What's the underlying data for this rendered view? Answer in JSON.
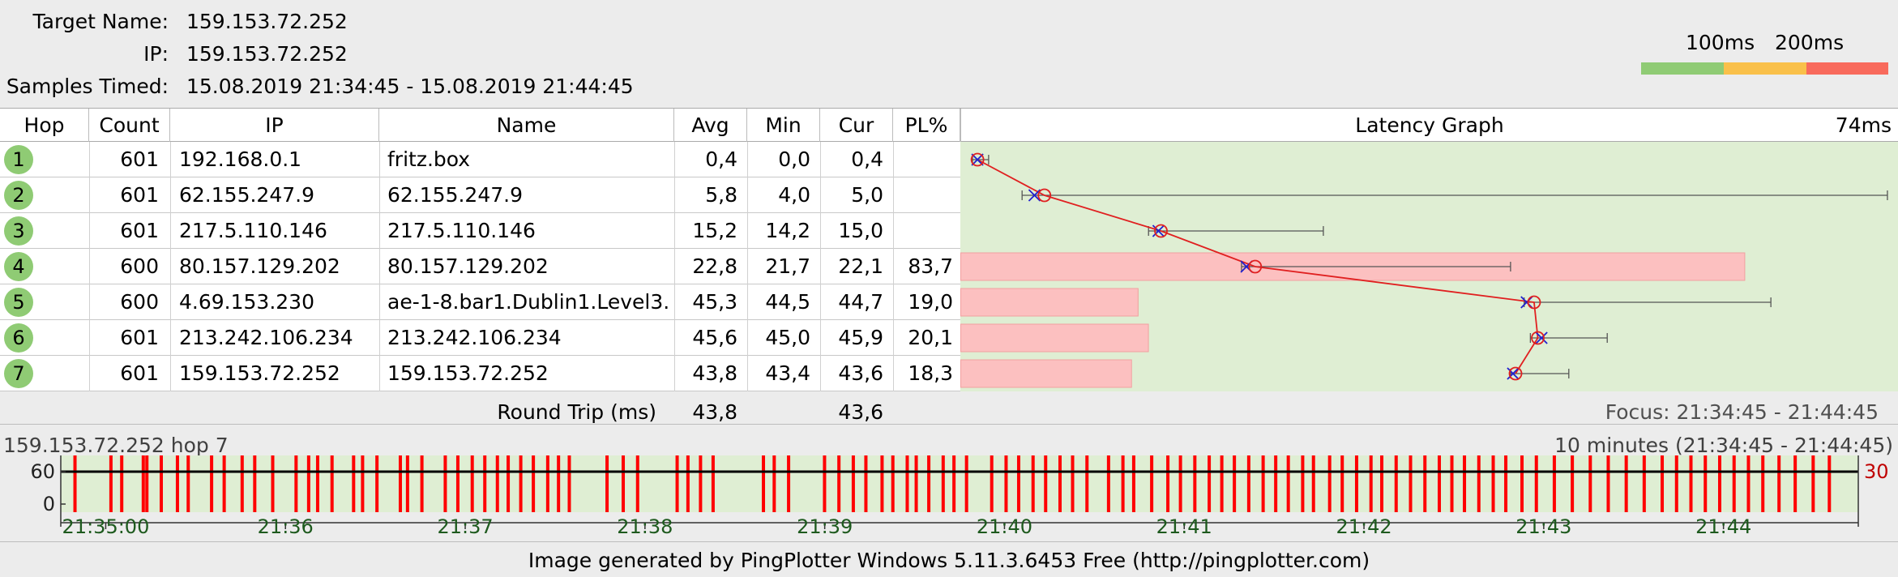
{
  "header": {
    "target_label": "Target Name:",
    "target_value": "159.153.72.252",
    "ip_label": "IP:",
    "ip_value": "159.153.72.252",
    "samples_label": "Samples Timed:",
    "samples_value": "15.08.2019 21:34:45 - 15.08.2019 21:44:45"
  },
  "legend": {
    "label_100": "100ms",
    "label_200": "200ms",
    "colors": {
      "good": "#8fcb74",
      "warn": "#f9c04a",
      "bad": "#f86a5c"
    }
  },
  "table": {
    "columns": [
      "Hop",
      "Count",
      "IP",
      "Name",
      "Avg",
      "Min",
      "Cur",
      "PL%",
      "Latency Graph"
    ],
    "graph_scale": "74ms",
    "rows": [
      {
        "hop": "1",
        "count": "601",
        "ip": "192.168.0.1",
        "name": "fritz.box",
        "avg": "0,4",
        "min": "0,0",
        "cur": "0,4",
        "pl": ""
      },
      {
        "hop": "2",
        "count": "601",
        "ip": "62.155.247.9",
        "name": "62.155.247.9",
        "avg": "5,8",
        "min": "4,0",
        "cur": "5,0",
        "pl": ""
      },
      {
        "hop": "3",
        "count": "601",
        "ip": "217.5.110.146",
        "name": "217.5.110.146",
        "avg": "15,2",
        "min": "14,2",
        "cur": "15,0",
        "pl": ""
      },
      {
        "hop": "4",
        "count": "600",
        "ip": "80.157.129.202",
        "name": "80.157.129.202",
        "avg": "22,8",
        "min": "21,7",
        "cur": "22,1",
        "pl": "83,7"
      },
      {
        "hop": "5",
        "count": "600",
        "ip": "4.69.153.230",
        "name": "ae-1-8.bar1.Dublin1.Level3.",
        "avg": "45,3",
        "min": "44,5",
        "cur": "44,7",
        "pl": "19,0"
      },
      {
        "hop": "6",
        "count": "601",
        "ip": "213.242.106.234",
        "name": "213.242.106.234",
        "avg": "45,6",
        "min": "45,0",
        "cur": "45,9",
        "pl": "20,1"
      },
      {
        "hop": "7",
        "count": "601",
        "ip": "159.153.72.252",
        "name": "159.153.72.252",
        "avg": "43,8",
        "min": "43,4",
        "cur": "43,6",
        "pl": "18,3"
      }
    ],
    "round_trip_label": "Round Trip (ms)",
    "round_trip_avg": "43,8",
    "round_trip_cur": "43,6",
    "focus_text": "Focus: 21:34:45 - 21:44:45"
  },
  "chart_data": {
    "type": "scatter",
    "title": "Latency Graph",
    "xlim": [
      0,
      74
    ],
    "x_unit": "ms",
    "hops": [
      1,
      2,
      3,
      4,
      5,
      6,
      7
    ],
    "avg": [
      0.4,
      5.8,
      15.2,
      22.8,
      45.3,
      45.6,
      43.8
    ],
    "min": [
      0.0,
      4.0,
      14.2,
      21.7,
      44.5,
      45.0,
      43.4
    ],
    "cur": [
      0.4,
      5.0,
      15.0,
      22.1,
      44.7,
      45.9,
      43.6
    ],
    "max": [
      1.3,
      73.8,
      28.3,
      43.4,
      64.4,
      51.2,
      48.1
    ],
    "packet_loss_pct": [
      0,
      0,
      0,
      83.7,
      19.0,
      20.1,
      18.3
    ],
    "colors": {
      "bg": "#dfeed3",
      "loss": "#fcc0c0",
      "avg_marker": "#e02020",
      "cur_marker": "#2020d0"
    }
  },
  "timeline": {
    "title": "159.153.72.252 hop 7",
    "range_text": "10 minutes (21:34:45 - 21:44:45)",
    "y_ticks": [
      "60",
      "0"
    ],
    "right_label": "30",
    "x_ticks": [
      "21:35:00",
      "21:36",
      "21:37",
      "21:38",
      "21:39",
      "21:40",
      "21:41",
      "21:42",
      "21:43",
      "21:44"
    ],
    "loss_markers_min": [
      0.07,
      0.27,
      0.33,
      0.45,
      0.47,
      0.55,
      0.64,
      0.7,
      0.83,
      0.9,
      1.0,
      1.07,
      1.17,
      1.3,
      1.37,
      1.42,
      1.5,
      1.62,
      1.67,
      1.75,
      1.88,
      1.92,
      2.0,
      2.13,
      2.2,
      2.28,
      2.35,
      2.42,
      2.48,
      2.55,
      2.62,
      2.7,
      2.76,
      2.82,
      3.03,
      3.12,
      3.2,
      3.42,
      3.48,
      3.55,
      3.62,
      3.9,
      3.96,
      4.04,
      4.24,
      4.32,
      4.4,
      4.47,
      4.56,
      4.62,
      4.7,
      4.75,
      4.82,
      4.9,
      4.96,
      5.03,
      5.17,
      5.25,
      5.32,
      5.4,
      5.47,
      5.55,
      5.62,
      5.7,
      5.82,
      5.9,
      5.96,
      6.06,
      6.15,
      6.22,
      6.3,
      6.38,
      6.45,
      6.52,
      6.6,
      6.68,
      6.75,
      6.82,
      6.9,
      6.96,
      7.05,
      7.12,
      7.2,
      7.28,
      7.34,
      7.42,
      7.5,
      7.58,
      7.66,
      7.73,
      7.8,
      7.88,
      7.96,
      8.03,
      8.12,
      8.2,
      8.3,
      8.4,
      8.5,
      8.6,
      8.7,
      8.8,
      8.9,
      8.98,
      9.06,
      9.14,
      9.22,
      9.3,
      9.38,
      9.46,
      9.55,
      9.64,
      9.74,
      9.83
    ],
    "colors": {
      "bg": "#dfeed3",
      "loss": "#ff0000",
      "line": "#000000",
      "tick_text": "#1e5a1e"
    }
  },
  "footer": {
    "text": "Image generated by PingPlotter Windows 5.11.3.6453 Free (http://pingplotter.com)"
  }
}
